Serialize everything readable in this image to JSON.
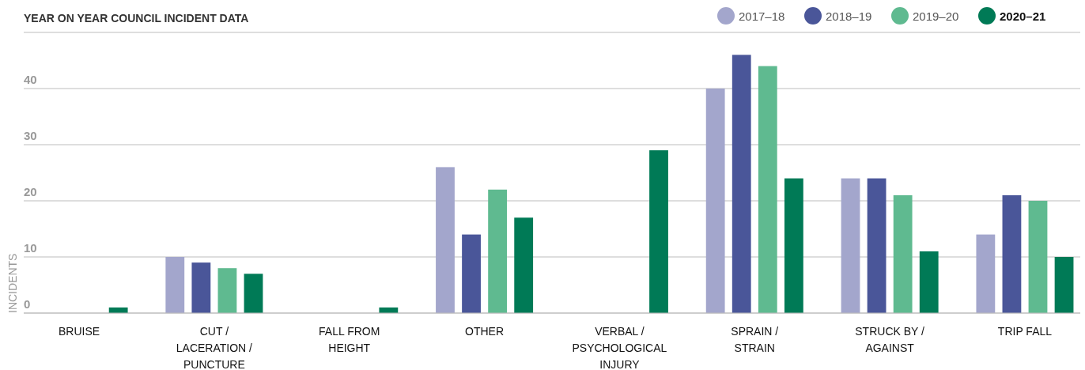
{
  "chart_data": {
    "type": "bar",
    "title": "YEAR ON YEAR COUNCIL INCIDENT DATA",
    "ylabel": "INCIDENTS",
    "categories": [
      "BRUISE",
      "CUT / LACERATION / PUNCTURE",
      "FALL FROM HEIGHT",
      "OTHER",
      "VERBAL / PSYCHOLOGICAL INJURY",
      "SPRAIN / STRAIN",
      "STRUCK BY / AGAINST",
      "TRIP FALL"
    ],
    "series": [
      {
        "name": "2017–18",
        "color": "#a3a6cc",
        "values": [
          0,
          10,
          0,
          26,
          0,
          40,
          24,
          14
        ]
      },
      {
        "name": "2018–19",
        "color": "#4a5699",
        "values": [
          0,
          9,
          0,
          14,
          0,
          46,
          24,
          21
        ]
      },
      {
        "name": "2019–20",
        "color": "#5fba90",
        "values": [
          0,
          8,
          0,
          22,
          0,
          44,
          21,
          20
        ]
      },
      {
        "name": "2020–21",
        "color": "#007a56",
        "values": [
          1,
          7,
          1,
          17,
          29,
          24,
          11,
          10
        ]
      }
    ],
    "ylim": [
      0,
      50
    ],
    "yticks": [
      0,
      10,
      20,
      30,
      40,
      {
        "value": 50,
        "label": null
      }
    ],
    "grid": "y",
    "legend": "top right"
  }
}
